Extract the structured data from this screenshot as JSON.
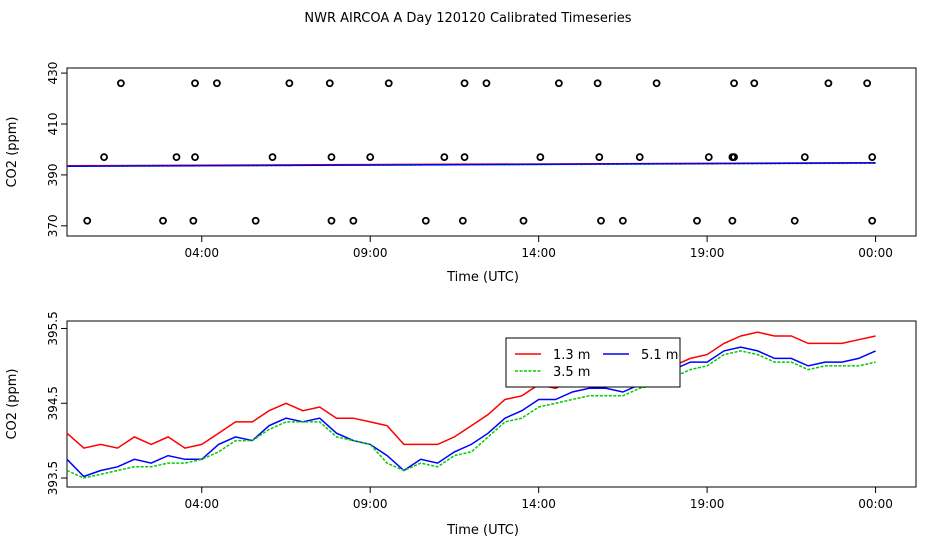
{
  "figure_title": "NWR AIRCOA A  Day 120120  Calibrated Timeseries",
  "chart_data": [
    {
      "type": "scatter",
      "xlabel": "Time (UTC)",
      "ylabel": "CO2 (ppm)",
      "xlim": [
        0,
        25.2
      ],
      "ylim": [
        366,
        432
      ],
      "xticks": [
        {
          "v": 4,
          "label": "04:00"
        },
        {
          "v": 9,
          "label": "09:00"
        },
        {
          "v": 14,
          "label": "14:00"
        },
        {
          "v": 19,
          "label": "19:00"
        },
        {
          "v": 24,
          "label": "00:00"
        }
      ],
      "yticks": [
        {
          "v": 370,
          "label": "370"
        },
        {
          "v": 390,
          "label": "390"
        },
        {
          "v": 410,
          "label": "410"
        },
        {
          "v": 430,
          "label": "430"
        }
      ],
      "calibration_points": [
        {
          "x": 1.6,
          "y": 426
        },
        {
          "x": 3.8,
          "y": 426
        },
        {
          "x": 4.45,
          "y": 426
        },
        {
          "x": 6.6,
          "y": 426
        },
        {
          "x": 7.8,
          "y": 426
        },
        {
          "x": 9.55,
          "y": 426
        },
        {
          "x": 11.8,
          "y": 426
        },
        {
          "x": 12.45,
          "y": 426
        },
        {
          "x": 14.6,
          "y": 426
        },
        {
          "x": 15.75,
          "y": 426
        },
        {
          "x": 17.5,
          "y": 426
        },
        {
          "x": 19.8,
          "y": 426
        },
        {
          "x": 20.4,
          "y": 426
        },
        {
          "x": 22.6,
          "y": 426
        },
        {
          "x": 23.75,
          "y": 426
        },
        {
          "x": 1.1,
          "y": 397
        },
        {
          "x": 3.25,
          "y": 397
        },
        {
          "x": 3.8,
          "y": 397
        },
        {
          "x": 6.1,
          "y": 397
        },
        {
          "x": 7.85,
          "y": 397
        },
        {
          "x": 9.0,
          "y": 397
        },
        {
          "x": 11.2,
          "y": 397
        },
        {
          "x": 11.8,
          "y": 397
        },
        {
          "x": 14.05,
          "y": 397
        },
        {
          "x": 15.8,
          "y": 397
        },
        {
          "x": 17.0,
          "y": 397
        },
        {
          "x": 19.05,
          "y": 397
        },
        {
          "x": 19.75,
          "y": 397
        },
        {
          "x": 19.8,
          "y": 397
        },
        {
          "x": 21.9,
          "y": 397
        },
        {
          "x": 23.9,
          "y": 397
        },
        {
          "x": 0.6,
          "y": 372
        },
        {
          "x": 2.85,
          "y": 372
        },
        {
          "x": 3.75,
          "y": 372
        },
        {
          "x": 5.6,
          "y": 372
        },
        {
          "x": 7.85,
          "y": 372
        },
        {
          "x": 8.5,
          "y": 372
        },
        {
          "x": 10.65,
          "y": 372
        },
        {
          "x": 11.75,
          "y": 372
        },
        {
          "x": 13.55,
          "y": 372
        },
        {
          "x": 15.85,
          "y": 372
        },
        {
          "x": 16.5,
          "y": 372
        },
        {
          "x": 18.7,
          "y": 372
        },
        {
          "x": 19.75,
          "y": 372
        },
        {
          "x": 21.6,
          "y": 372
        },
        {
          "x": 23.9,
          "y": 372
        }
      ],
      "series": [
        {
          "color": "#ff0000",
          "x": [
            0,
            24
          ],
          "values": [
            393.6,
            394.8
          ]
        },
        {
          "color": "#00cc00",
          "x": [
            0,
            24
          ],
          "values": [
            393.4,
            394.6
          ]
        },
        {
          "color": "#0000ff",
          "x": [
            0,
            24
          ],
          "values": [
            393.4,
            394.7
          ]
        }
      ]
    },
    {
      "type": "line",
      "xlabel": "Time (UTC)",
      "ylabel": "CO2 (ppm)",
      "xlim": [
        0,
        25.2
      ],
      "ylim": [
        393.38,
        395.6
      ],
      "xticks": [
        {
          "v": 4,
          "label": "04:00"
        },
        {
          "v": 9,
          "label": "09:00"
        },
        {
          "v": 14,
          "label": "14:00"
        },
        {
          "v": 19,
          "label": "19:00"
        },
        {
          "v": 24,
          "label": "00:00"
        }
      ],
      "yticks": [
        {
          "v": 393.5,
          "label": "393.5"
        },
        {
          "v": 394.5,
          "label": "394.5"
        },
        {
          "v": 395.5,
          "label": "395.5"
        }
      ],
      "legend": {
        "position": "top-right",
        "entries": [
          {
            "label": "1.3 m",
            "color": "#ff0000"
          },
          {
            "label": "5.1 m",
            "color": "#0000ff"
          },
          {
            "label": "3.5 m",
            "color": "#00cc00"
          }
        ]
      },
      "x": [
        0,
        0.5,
        1,
        1.5,
        2,
        2.5,
        3,
        3.5,
        4,
        4.5,
        5,
        5.5,
        6,
        6.5,
        7,
        7.5,
        8,
        8.5,
        9,
        9.5,
        10,
        10.5,
        11,
        11.5,
        12,
        12.5,
        13,
        13.5,
        14,
        14.5,
        15,
        15.5,
        16,
        16.5,
        17,
        17.5,
        18,
        18.5,
        19,
        19.5,
        20,
        20.5,
        21,
        21.5,
        22,
        22.5,
        23,
        23.5,
        24
      ],
      "series": [
        {
          "name": "1.3 m",
          "color": "#ff0000",
          "values": [
            394.1,
            393.9,
            393.95,
            393.9,
            394.05,
            393.95,
            394.05,
            393.9,
            393.95,
            394.1,
            394.25,
            394.25,
            394.4,
            394.5,
            394.4,
            394.45,
            394.3,
            394.3,
            394.25,
            394.2,
            393.95,
            393.95,
            393.95,
            394.05,
            394.2,
            394.35,
            394.55,
            394.6,
            394.75,
            394.7,
            394.8,
            394.9,
            394.85,
            394.8,
            394.9,
            394.9,
            395.0,
            395.1,
            395.15,
            395.3,
            395.4,
            395.45,
            395.4,
            395.4,
            395.3,
            395.3,
            395.3,
            395.35,
            395.4
          ]
        },
        {
          "name": "5.1 m",
          "color": "#0000ff",
          "values": [
            393.75,
            393.52,
            393.6,
            393.65,
            393.75,
            393.7,
            393.8,
            393.75,
            393.75,
            393.95,
            394.05,
            394.0,
            394.2,
            394.3,
            394.25,
            394.3,
            394.1,
            394.0,
            393.95,
            393.8,
            393.6,
            393.75,
            393.7,
            393.85,
            393.95,
            394.1,
            394.3,
            394.4,
            394.55,
            394.55,
            394.65,
            394.7,
            394.7,
            394.65,
            394.75,
            394.8,
            394.95,
            395.05,
            395.05,
            395.2,
            395.25,
            395.2,
            395.1,
            395.1,
            395.0,
            395.05,
            395.05,
            395.1,
            395.2
          ]
        },
        {
          "name": "3.5 m",
          "color": "#00cc00",
          "values": [
            393.6,
            393.5,
            393.55,
            393.6,
            393.65,
            393.65,
            393.7,
            393.7,
            393.75,
            393.85,
            394.0,
            394.0,
            394.15,
            394.25,
            394.25,
            394.25,
            394.05,
            394.0,
            393.95,
            393.7,
            393.6,
            393.7,
            393.65,
            393.8,
            393.85,
            394.05,
            394.25,
            394.3,
            394.45,
            394.5,
            394.55,
            394.6,
            394.6,
            394.6,
            394.7,
            394.75,
            394.85,
            394.95,
            395.0,
            395.15,
            395.2,
            395.15,
            395.05,
            395.05,
            394.95,
            395.0,
            395.0,
            395.0,
            395.05
          ]
        }
      ]
    }
  ]
}
